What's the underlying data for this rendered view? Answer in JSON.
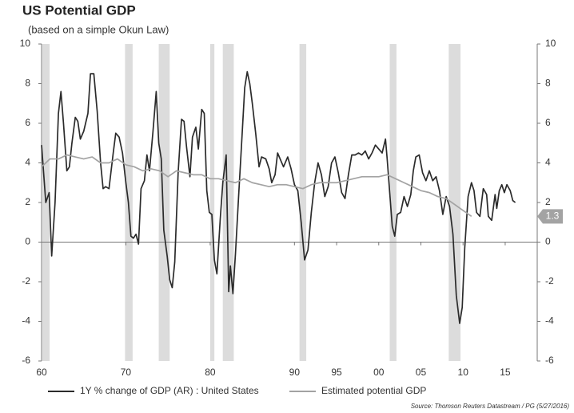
{
  "chart_data": {
    "type": "line",
    "title": "US Potential GDP",
    "subtitle": "(based on a simple Okun Law)",
    "source": "Source: Thomson Reuters Datastream / PG (5/27/2016)",
    "xlim": [
      1960,
      2018.8
    ],
    "ylim": [
      -6,
      10
    ],
    "xticks": [
      {
        "value": 1960,
        "label": "60"
      },
      {
        "value": 1970,
        "label": "70"
      },
      {
        "value": 1980,
        "label": "80"
      },
      {
        "value": 1990,
        "label": "90"
      },
      {
        "value": 1995,
        "label": "95"
      },
      {
        "value": 2000,
        "label": "00"
      },
      {
        "value": 2005,
        "label": "05"
      },
      {
        "value": 2010,
        "label": "10"
      },
      {
        "value": 2015,
        "label": "15"
      }
    ],
    "yticks": [
      -6,
      -4,
      -2,
      0,
      2,
      4,
      6,
      8,
      10
    ],
    "shaded_periods": [
      [
        1960.1,
        1960.95
      ],
      [
        1969.9,
        1970.8
      ],
      [
        1973.9,
        1975.2
      ],
      [
        1980.0,
        1980.5
      ],
      [
        1981.5,
        1982.8
      ],
      [
        1990.6,
        1991.4
      ],
      [
        2001.3,
        2002.1
      ],
      [
        2008.3,
        2009.7
      ]
    ],
    "shade_color": "#dcdcdc",
    "series": [
      {
        "name": "1Y % change of GDP (AR) : United States",
        "color": "#2b2b2b",
        "x": [
          1960.0,
          1960.5,
          1960.9,
          1961.2,
          1961.6,
          1962.0,
          1962.3,
          1962.6,
          1963.0,
          1963.3,
          1963.6,
          1964.0,
          1964.3,
          1964.6,
          1965.0,
          1965.5,
          1965.8,
          1966.2,
          1966.6,
          1967.0,
          1967.3,
          1967.6,
          1968.0,
          1968.5,
          1968.8,
          1969.2,
          1969.6,
          1970.0,
          1970.3,
          1970.6,
          1970.9,
          1971.2,
          1971.5,
          1971.8,
          1972.2,
          1972.5,
          1972.8,
          1973.2,
          1973.6,
          1973.9,
          1974.2,
          1974.5,
          1974.9,
          1975.2,
          1975.5,
          1975.8,
          1976.2,
          1976.6,
          1976.9,
          1977.2,
          1977.6,
          1977.9,
          1978.3,
          1978.6,
          1979.0,
          1979.3,
          1979.6,
          1979.9,
          1980.2,
          1980.5,
          1980.8,
          1981.2,
          1981.5,
          1981.9,
          1982.2,
          1982.4,
          1982.7,
          1983.0,
          1983.4,
          1983.8,
          1984.1,
          1984.4,
          1984.7,
          1985.0,
          1985.4,
          1985.8,
          1986.1,
          1986.6,
          1987.0,
          1987.3,
          1987.7,
          1988.0,
          1988.4,
          1988.7,
          1989.2,
          1989.6,
          1990.0,
          1990.4,
          1990.8,
          1991.2,
          1991.6,
          1992.0,
          1992.4,
          1992.8,
          1993.2,
          1993.6,
          1994.0,
          1994.4,
          1994.8,
          1995.2,
          1995.6,
          1996.0,
          1996.4,
          1996.8,
          1997.2,
          1997.6,
          1998.0,
          1998.4,
          1998.8,
          1999.2,
          1999.6,
          2000.0,
          2000.4,
          2000.8,
          2001.0,
          2001.3,
          2001.6,
          2001.9,
          2002.2,
          2002.6,
          2003.0,
          2003.4,
          2003.8,
          2004.1,
          2004.4,
          2004.8,
          2005.2,
          2005.6,
          2006.0,
          2006.4,
          2006.8,
          2007.2,
          2007.6,
          2008.0,
          2008.4,
          2008.8,
          2009.2,
          2009.6,
          2009.9,
          2010.2,
          2010.6,
          2011.0,
          2011.3,
          2011.6,
          2012.0,
          2012.4,
          2012.8,
          2013.0,
          2013.4,
          2013.8,
          2014.0,
          2014.3,
          2014.6,
          2014.9,
          2015.2,
          2015.6,
          2015.9,
          2016.2
        ],
        "values": [
          4.9,
          2.0,
          2.5,
          -0.7,
          2.0,
          6.5,
          7.6,
          6.0,
          3.6,
          3.8,
          5.0,
          6.3,
          6.1,
          5.2,
          5.6,
          6.5,
          8.5,
          8.5,
          6.6,
          4.0,
          2.7,
          2.8,
          2.7,
          4.5,
          5.5,
          5.3,
          4.5,
          3.0,
          2.0,
          0.3,
          0.2,
          0.4,
          -0.1,
          2.7,
          3.1,
          4.4,
          3.6,
          5.5,
          7.6,
          5.0,
          4.2,
          0.6,
          -0.7,
          -1.9,
          -2.3,
          -1.0,
          3.5,
          6.2,
          6.1,
          4.8,
          3.3,
          5.3,
          5.8,
          4.7,
          6.7,
          6.5,
          2.6,
          1.5,
          1.4,
          -0.9,
          -1.6,
          1.2,
          3.0,
          4.4,
          -2.5,
          -1.2,
          -2.6,
          -0.6,
          2.5,
          5.5,
          7.8,
          8.6,
          8.0,
          7.0,
          5.5,
          3.8,
          4.3,
          4.2,
          3.7,
          3.0,
          3.4,
          4.5,
          4.1,
          3.8,
          4.3,
          3.7,
          2.9,
          2.6,
          1.0,
          -0.9,
          -0.4,
          1.5,
          3.0,
          4.0,
          3.4,
          2.3,
          2.8,
          4.0,
          4.3,
          3.5,
          2.5,
          2.2,
          3.4,
          4.4,
          4.4,
          4.5,
          4.4,
          4.6,
          4.2,
          4.5,
          4.9,
          4.7,
          4.5,
          5.2,
          4.2,
          2.5,
          0.8,
          0.3,
          1.4,
          1.5,
          2.3,
          1.8,
          2.4,
          3.6,
          4.3,
          4.4,
          3.5,
          3.1,
          3.6,
          3.1,
          3.3,
          2.6,
          1.4,
          2.3,
          1.8,
          0.4,
          -2.7,
          -4.1,
          -3.3,
          -0.3,
          2.3,
          3.0,
          2.6,
          1.5,
          1.3,
          2.7,
          2.4,
          1.3,
          1.1,
          2.4,
          1.7,
          2.6,
          2.9,
          2.5,
          2.9,
          2.6,
          2.1,
          2.0
        ]
      },
      {
        "name": "Estimated potential GDP",
        "color": "#a3a3a3",
        "end_label": 1.3,
        "x": [
          1960,
          1961,
          1962,
          1963,
          1964,
          1965,
          1966,
          1967,
          1968,
          1969,
          1970,
          1971,
          1972,
          1973,
          1974,
          1975,
          1976,
          1977,
          1978,
          1979,
          1980,
          1981,
          1982,
          1983,
          1984,
          1985,
          1986,
          1987,
          1988,
          1989,
          1990,
          1991,
          1992,
          1993,
          1994,
          1995,
          1996,
          1997,
          1998,
          1999,
          2000,
          2001,
          2002,
          2003,
          2004,
          2005,
          2006,
          2007,
          2008,
          2009,
          2010,
          2011
        ],
        "values": [
          3.8,
          4.2,
          4.2,
          4.4,
          4.3,
          4.2,
          4.3,
          4.0,
          4.0,
          4.2,
          3.9,
          3.8,
          3.6,
          3.7,
          3.6,
          3.3,
          3.6,
          3.5,
          3.4,
          3.4,
          3.2,
          3.2,
          3.1,
          3.0,
          3.2,
          3.0,
          2.9,
          2.8,
          2.9,
          2.9,
          2.8,
          2.7,
          2.9,
          3.0,
          3.0,
          3.0,
          3.1,
          3.2,
          3.3,
          3.3,
          3.3,
          3.4,
          3.2,
          3.0,
          2.8,
          2.6,
          2.5,
          2.3,
          2.2,
          1.9,
          1.6,
          1.3
        ]
      }
    ]
  }
}
